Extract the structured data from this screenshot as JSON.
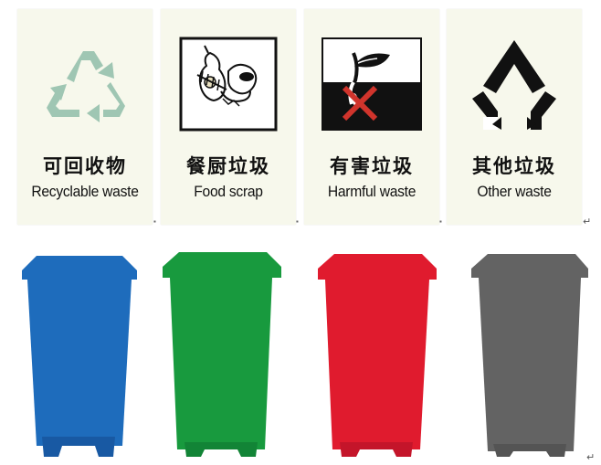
{
  "signs": [
    {
      "key": "recyclable",
      "zh": "可回收物",
      "en": "Recyclable waste",
      "icon": "recycle-triangle-icon",
      "color": "#9fc6b3"
    },
    {
      "key": "food",
      "zh": "餐厨垃圾",
      "en": "Food scrap",
      "icon": "fish-bone-apple-core-icon",
      "color": "#111111"
    },
    {
      "key": "harmful",
      "zh": "有害垃圾",
      "en": "Harmful waste",
      "icon": "crossed-battery-icon",
      "color": "#d0342c"
    },
    {
      "key": "other",
      "zh": "其他垃圾",
      "en": "Other  waste",
      "icon": "open-triangle-icon",
      "color": "#111111"
    }
  ],
  "bins": [
    {
      "key": "recyclable",
      "color": "#1e6cbc",
      "dark": "#1859a3"
    },
    {
      "key": "food",
      "color": "#189a3e",
      "dark": "#128436"
    },
    {
      "key": "harmful",
      "color": "#e01b2e",
      "dark": "#c4152a"
    },
    {
      "key": "other",
      "color": "#636363",
      "dark": "#545454"
    }
  ]
}
